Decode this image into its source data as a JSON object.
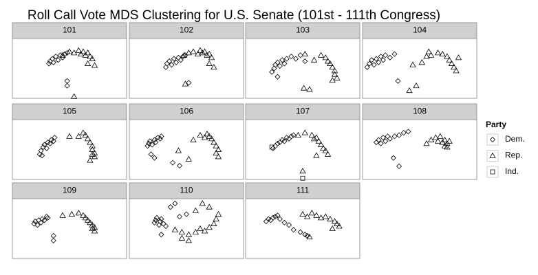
{
  "chart_data": {
    "type": "scatter",
    "title": "Roll Call Vote MDS Clustering for U.S. Senate (101st - 111th Congress)",
    "legend_title": "Party",
    "legend": "right",
    "xlim": [
      0,
      100
    ],
    "ylim": [
      0,
      100
    ],
    "series": [
      {
        "name": "Dem.",
        "marker": "diamond",
        "color": "#000000"
      },
      {
        "name": "Rep.",
        "marker": "triangle",
        "color": "#000000"
      },
      {
        "name": "Ind.",
        "marker": "square",
        "color": "#000000"
      }
    ],
    "facets": [
      {
        "label": "101",
        "data": [
          {
            "x": [
              32,
              33,
              35,
              36,
              38,
              40,
              42,
              44,
              46,
              48,
              48,
              48
            ],
            "y": [
              58,
              62,
              66,
              60,
              70,
              64,
              72,
              68,
              74,
              76,
              29,
              21
            ]
          },
          {
            "x": [
              44,
              50,
              54,
              58,
              60,
              62,
              64,
              66,
              68,
              70,
              66,
              72,
              54
            ],
            "y": [
              72,
              78,
              76,
              80,
              74,
              78,
              72,
              76,
              70,
              66,
              58,
              55,
              3
            ]
          },
          {
            "x": [],
            "y": []
          }
        ]
      },
      {
        "label": "102",
        "data": [
          {
            "x": [
              32,
              33,
              35,
              37,
              39,
              41,
              43,
              45,
              47,
              49,
              52
            ],
            "y": [
              52,
              58,
              62,
              56,
              66,
              60,
              68,
              64,
              70,
              72,
              26
            ]
          },
          {
            "x": [
              48,
              52,
              56,
              60,
              62,
              64,
              66,
              68,
              70,
              72,
              70,
              74,
              49
            ],
            "y": [
              72,
              76,
              78,
              74,
              80,
              76,
              78,
              72,
              74,
              68,
              58,
              52,
              24
            ]
          },
          {
            "x": [],
            "y": []
          }
        ]
      },
      {
        "label": "103",
        "data": [
          {
            "x": [
              23,
              25,
              26,
              28,
              30,
              32,
              34,
              36,
              40,
              44,
              48,
              52,
              28
            ],
            "y": [
              44,
              50,
              56,
              60,
              54,
              64,
              58,
              66,
              70,
              66,
              72,
              62,
              36
            ]
          },
          {
            "x": [
              52,
              60,
              66,
              70,
              72,
              74,
              76,
              78,
              78,
              80,
              76,
              51,
              56
            ],
            "y": [
              74,
              64,
              72,
              68,
              62,
              58,
              52,
              46,
              40,
              34,
              30,
              17,
              15
            ]
          },
          {
            "x": [],
            "y": []
          }
        ]
      },
      {
        "label": "104",
        "data": [
          {
            "x": [
              4,
              6,
              8,
              10,
              12,
              14,
              16,
              18,
              20,
              24,
              28,
              31
            ],
            "y": [
              52,
              58,
              64,
              56,
              66,
              60,
              70,
              64,
              72,
              68,
              74,
              29
            ]
          },
          {
            "x": [
              44,
              52,
              56,
              58,
              60,
              66,
              70,
              74,
              76,
              78,
              80,
              82,
              84,
              41,
              47
            ],
            "y": [
              56,
              60,
              70,
              78,
              72,
              76,
              74,
              70,
              64,
              58,
              52,
              46,
              68,
              13,
              21
            ]
          },
          {
            "x": [],
            "y": []
          }
        ]
      },
      {
        "label": "105",
        "data": [
          {
            "x": [
              24,
              25,
              27,
              28,
              30,
              31,
              33,
              34,
              36,
              37,
              26
            ],
            "y": [
              42,
              48,
              54,
              58,
              52,
              62,
              60,
              66,
              64,
              70,
              40
            ]
          },
          {
            "x": [
              50,
              58,
              62,
              64,
              66,
              68,
              70,
              70,
              72,
              72,
              68,
              70
            ],
            "y": [
              72,
              72,
              78,
              74,
              68,
              62,
              56,
              50,
              44,
              38,
              32,
              42
            ]
          },
          {
            "x": [],
            "y": []
          }
        ]
      },
      {
        "label": "106",
        "data": [
          {
            "x": [
              16,
              17,
              18,
              20,
              22,
              23,
              25,
              27,
              28,
              19,
              22,
              44,
              38
            ],
            "y": [
              56,
              60,
              64,
              58,
              66,
              62,
              70,
              68,
              72,
              42,
              36,
              23,
              28
            ]
          },
          {
            "x": [
              56,
              62,
              66,
              68,
              70,
              72,
              74,
              76,
              78,
              76,
              78,
              43,
              52
            ],
            "y": [
              66,
              74,
              70,
              76,
              72,
              68,
              62,
              56,
              50,
              44,
              38,
              48,
              34
            ]
          },
          {
            "x": [],
            "y": []
          }
        ]
      },
      {
        "label": "107",
        "data": [
          {
            "x": [
              24,
              26,
              28,
              30,
              32,
              34,
              36,
              38,
              40,
              42
            ],
            "y": [
              52,
              56,
              60,
              62,
              66,
              64,
              70,
              68,
              72,
              74
            ]
          },
          {
            "x": [
              46,
              52,
              58,
              60,
              62,
              64,
              66,
              68,
              70,
              72,
              62,
              50
            ],
            "y": [
              74,
              78,
              74,
              68,
              70,
              64,
              58,
              52,
              48,
              42,
              40,
              14
            ]
          },
          {
            "x": [
              23,
              50
            ],
            "y": [
              54,
              2
            ]
          }
        ]
      },
      {
        "label": "108",
        "data": [
          {
            "x": [
              12,
              14,
              16,
              18,
              20,
              22,
              24,
              28,
              32,
              36,
              40,
              27,
              32
            ],
            "y": [
              62,
              66,
              60,
              70,
              64,
              72,
              68,
              72,
              74,
              78,
              80,
              36,
              22
            ]
          },
          {
            "x": [
              56,
              60,
              64,
              66,
              68,
              70,
              72,
              74,
              76,
              72,
              74
            ],
            "y": [
              60,
              66,
              70,
              64,
              72,
              62,
              66,
              60,
              64,
              56,
              54
            ]
          },
          {
            "x": [],
            "y": []
          }
        ]
      },
      {
        "label": "109",
        "data": [
          {
            "x": [
              19,
              20,
              22,
              23,
              25,
              26,
              28,
              30,
              31,
              36,
              36
            ],
            "y": [
              58,
              62,
              56,
              64,
              60,
              66,
              64,
              70,
              68,
              38,
              30
            ]
          },
          {
            "x": [
              44,
              52,
              58,
              62,
              64,
              66,
              68,
              70,
              72,
              72,
              70
            ],
            "y": [
              72,
              74,
              76,
              72,
              68,
              64,
              60,
              56,
              52,
              46,
              50
            ]
          },
          {
            "x": [],
            "y": []
          }
        ]
      },
      {
        "label": "110",
        "data": [
          {
            "x": [
              22,
              23,
              24,
              26,
              27,
              28,
              30,
              32,
              36,
              40,
              28,
              44,
              50
            ],
            "y": [
              60,
              64,
              68,
              56,
              62,
              66,
              58,
              54,
              86,
              92,
              40,
              70,
              74
            ]
          },
          {
            "x": [
              40,
              46,
              52,
              58,
              62,
              66,
              70,
              74,
              76,
              78,
              70,
              64,
              58,
              52,
              46
            ],
            "y": [
              48,
              44,
              40,
              44,
              50,
              46,
              52,
              58,
              66,
              74,
              86,
              92,
              80,
              30,
              34
            ]
          },
          {
            "x": [],
            "y": []
          }
        ]
      },
      {
        "label": "111",
        "data": [
          {
            "x": [
              18,
              20,
              22,
              24,
              26,
              28,
              30,
              34,
              38,
              42,
              48,
              52,
              54
            ],
            "y": [
              62,
              66,
              64,
              68,
              70,
              72,
              66,
              60,
              56,
              48,
              44,
              40,
              38
            ]
          },
          {
            "x": [
              50,
              54,
              58,
              62,
              66,
              70,
              74,
              78,
              80,
              82,
              76,
              56
            ],
            "y": [
              74,
              70,
              76,
              72,
              68,
              70,
              66,
              62,
              58,
              54,
              50,
              36
            ]
          },
          {
            "x": [],
            "y": []
          }
        ]
      }
    ]
  }
}
